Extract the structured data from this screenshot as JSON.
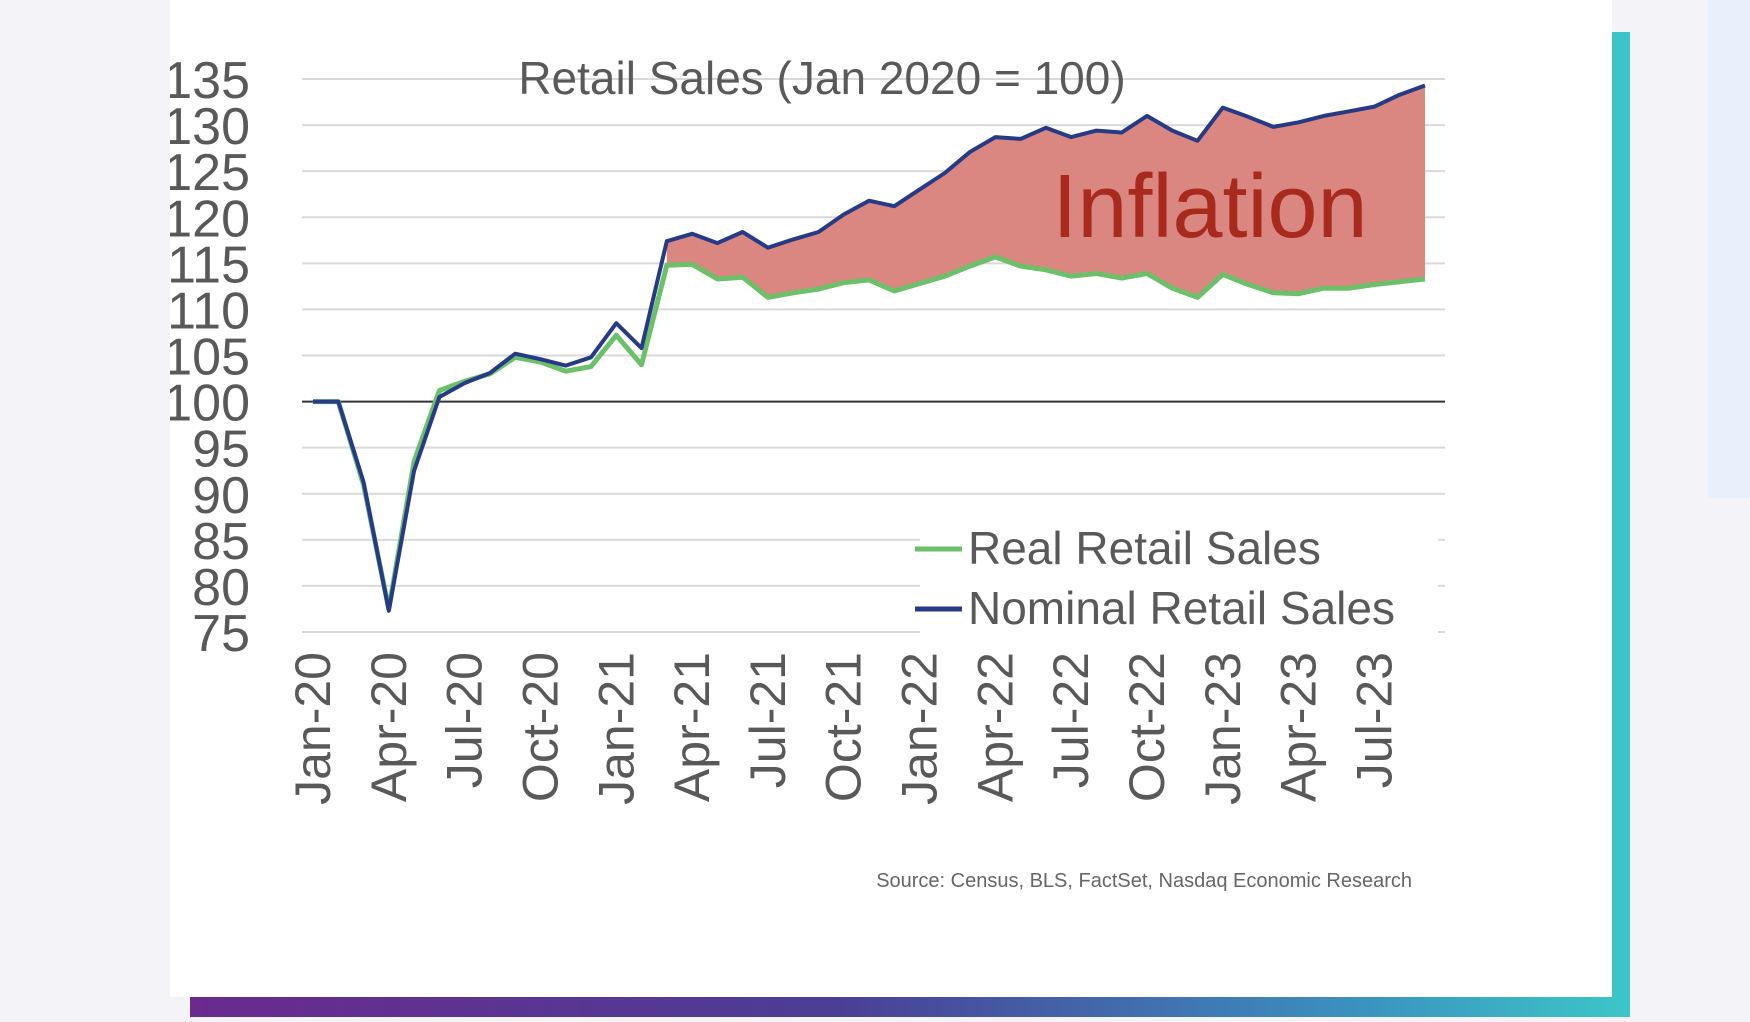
{
  "colors": {
    "real": "#6cc06a",
    "nominal": "#263a86",
    "inflation_fill": "#d98780",
    "inflation_text": "#a82a1c",
    "grid": "#d9d9d9",
    "baseline": "#333333",
    "axis_text": "#595959"
  },
  "chart_data": {
    "type": "line",
    "title": "Retail Sales (Jan 2020 = 100)",
    "annotation": "Inflation",
    "source": "Source: Census, BLS, FactSet, Nasdaq Economic Research",
    "xlabel": "",
    "ylabel": "",
    "ylim": [
      75,
      135
    ],
    "yticks": [
      "135",
      "130",
      "125",
      "120",
      "115",
      "110",
      "105",
      "100",
      "95",
      "90",
      "85",
      "80",
      "75"
    ],
    "xtick_labels": [
      "Jan-20",
      "Apr-20",
      "Jul-20",
      "Oct-20",
      "Jan-21",
      "Apr-21",
      "Jul-21",
      "Oct-21",
      "Jan-22",
      "Apr-22",
      "Jul-22",
      "Oct-22",
      "Jan-23",
      "Apr-23",
      "Jul-23"
    ],
    "x": [
      "Jan-20",
      "Feb-20",
      "Mar-20",
      "Apr-20",
      "May-20",
      "Jun-20",
      "Jul-20",
      "Aug-20",
      "Sep-20",
      "Oct-20",
      "Nov-20",
      "Dec-20",
      "Jan-21",
      "Feb-21",
      "Mar-21",
      "Apr-21",
      "May-21",
      "Jun-21",
      "Jul-21",
      "Aug-21",
      "Sep-21",
      "Oct-21",
      "Nov-21",
      "Dec-21",
      "Jan-22",
      "Feb-22",
      "Mar-22",
      "Apr-22",
      "May-22",
      "Jun-22",
      "Jul-22",
      "Aug-22",
      "Sep-22",
      "Oct-22",
      "Nov-22",
      "Dec-22",
      "Jan-23",
      "Feb-23",
      "Mar-23",
      "Apr-23",
      "May-23",
      "Jun-23",
      "Jul-23",
      "Aug-23",
      "Sep-23"
    ],
    "series": [
      {
        "name": "Real Retail Sales",
        "values": [
          100.0,
          100.0,
          91.0,
          77.5,
          93.5,
          101.2,
          102.2,
          103.0,
          104.8,
          104.3,
          103.3,
          103.8,
          107.2,
          104.0,
          114.8,
          114.9,
          113.3,
          113.5,
          111.3,
          111.8,
          112.2,
          112.9,
          113.2,
          112.0,
          112.8,
          113.6,
          114.7,
          115.7,
          114.7,
          114.3,
          113.6,
          113.9,
          113.4,
          113.9,
          112.3,
          111.3,
          113.8,
          112.7,
          111.8,
          111.7,
          112.3,
          112.3,
          112.7,
          113.0,
          113.3
        ]
      },
      {
        "name": "Nominal Retail Sales",
        "values": [
          100.0,
          100.0,
          91.3,
          77.3,
          92.5,
          100.5,
          102.0,
          103.1,
          105.2,
          104.6,
          103.9,
          104.8,
          108.5,
          105.8,
          117.4,
          118.2,
          117.2,
          118.4,
          116.7,
          117.6,
          118.4,
          120.3,
          121.8,
          121.2,
          123.0,
          124.8,
          127.1,
          128.7,
          128.5,
          129.7,
          128.7,
          129.4,
          129.2,
          131.0,
          129.4,
          128.3,
          131.9,
          130.9,
          129.8,
          130.3,
          131.0,
          131.5,
          132.0,
          133.3,
          134.3
        ]
      }
    ],
    "legend": {
      "placement": "bottom-right",
      "entries": [
        "Real Retail Sales",
        "Nominal Retail Sales"
      ]
    },
    "grid": true,
    "baseline_value": 100
  }
}
